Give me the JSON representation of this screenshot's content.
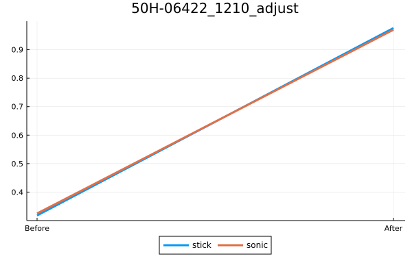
{
  "chart_data": {
    "type": "line",
    "title": "50H-06422_1210_adjust",
    "xlabel": "",
    "ylabel": "",
    "categories": [
      "Before",
      "After"
    ],
    "y_ticks": [
      0.4,
      0.5,
      0.6,
      0.7,
      0.8,
      0.9
    ],
    "y_tick_labels": [
      "0.4",
      "0.5",
      "0.6",
      "0.7",
      "0.8",
      "0.9"
    ],
    "ylim": [
      0.3,
      1.0
    ],
    "grid": true,
    "legend_position": "bottom-center",
    "series": [
      {
        "name": "stick",
        "values": [
          0.318,
          0.976
        ],
        "color": "#009AFA"
      },
      {
        "name": "sonic",
        "values": [
          0.325,
          0.97
        ],
        "color": "#E26F46"
      }
    ]
  }
}
